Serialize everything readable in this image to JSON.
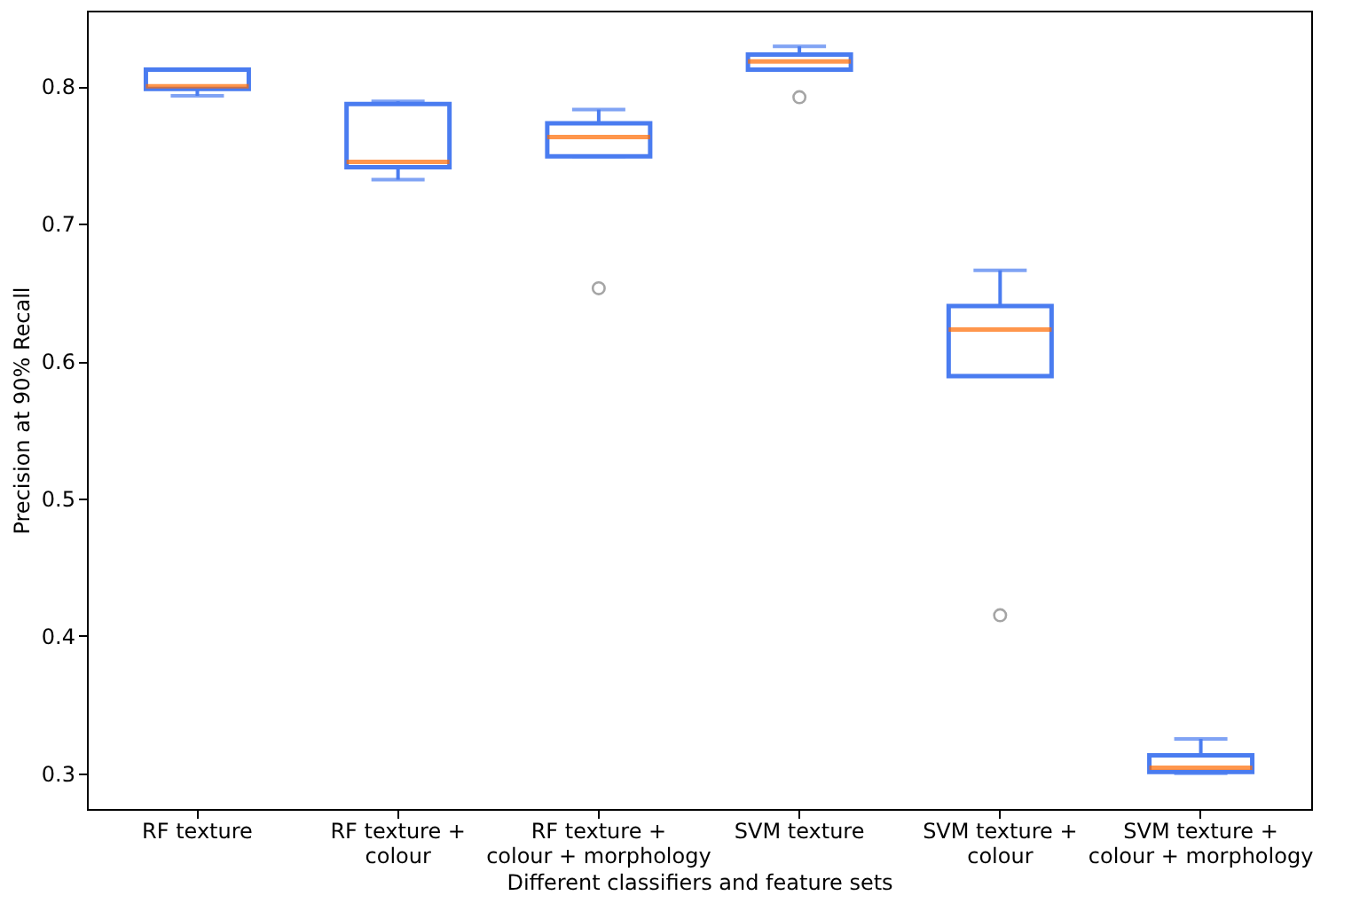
{
  "chart_data": {
    "type": "box",
    "xlabel": "Different classifiers and feature sets",
    "ylabel": "Precision at 90% Recall",
    "categories": [
      "RF texture",
      "RF texture +\ncolour",
      "RF texture +\ncolour + morphology",
      "SVM texture",
      "SVM texture +\ncolour",
      "SVM texture +\ncolour + morphology"
    ],
    "series": [
      {
        "color": "#4a7cf0",
        "boxes": [
          {
            "low": 0.793,
            "q1": 0.798,
            "median": 0.8,
            "q3": 0.812,
            "high": 0.812
          },
          {
            "low": 0.732,
            "q1": 0.741,
            "median": 0.745,
            "q3": 0.787,
            "high": 0.789
          },
          {
            "low": 0.749,
            "q1": 0.749,
            "median": 0.763,
            "q3": 0.773,
            "high": 0.783,
            "outliers": [
              0.653
            ]
          },
          {
            "low": 0.812,
            "q1": 0.812,
            "median": 0.818,
            "q3": 0.823,
            "high": 0.829,
            "outliers": [
              0.792
            ]
          },
          {
            "low": 0.589,
            "q1": 0.589,
            "median": 0.623,
            "q3": 0.64,
            "high": 0.666,
            "outliers": [
              0.415
            ]
          },
          {
            "low": 0.3,
            "q1": 0.301,
            "median": 0.304,
            "q3": 0.313,
            "high": 0.325
          }
        ]
      }
    ],
    "ylim": [
      0.274,
      0.855
    ],
    "yticks": [
      0.3,
      0.4,
      0.5,
      0.6,
      0.7,
      0.8
    ],
    "grid": false
  }
}
